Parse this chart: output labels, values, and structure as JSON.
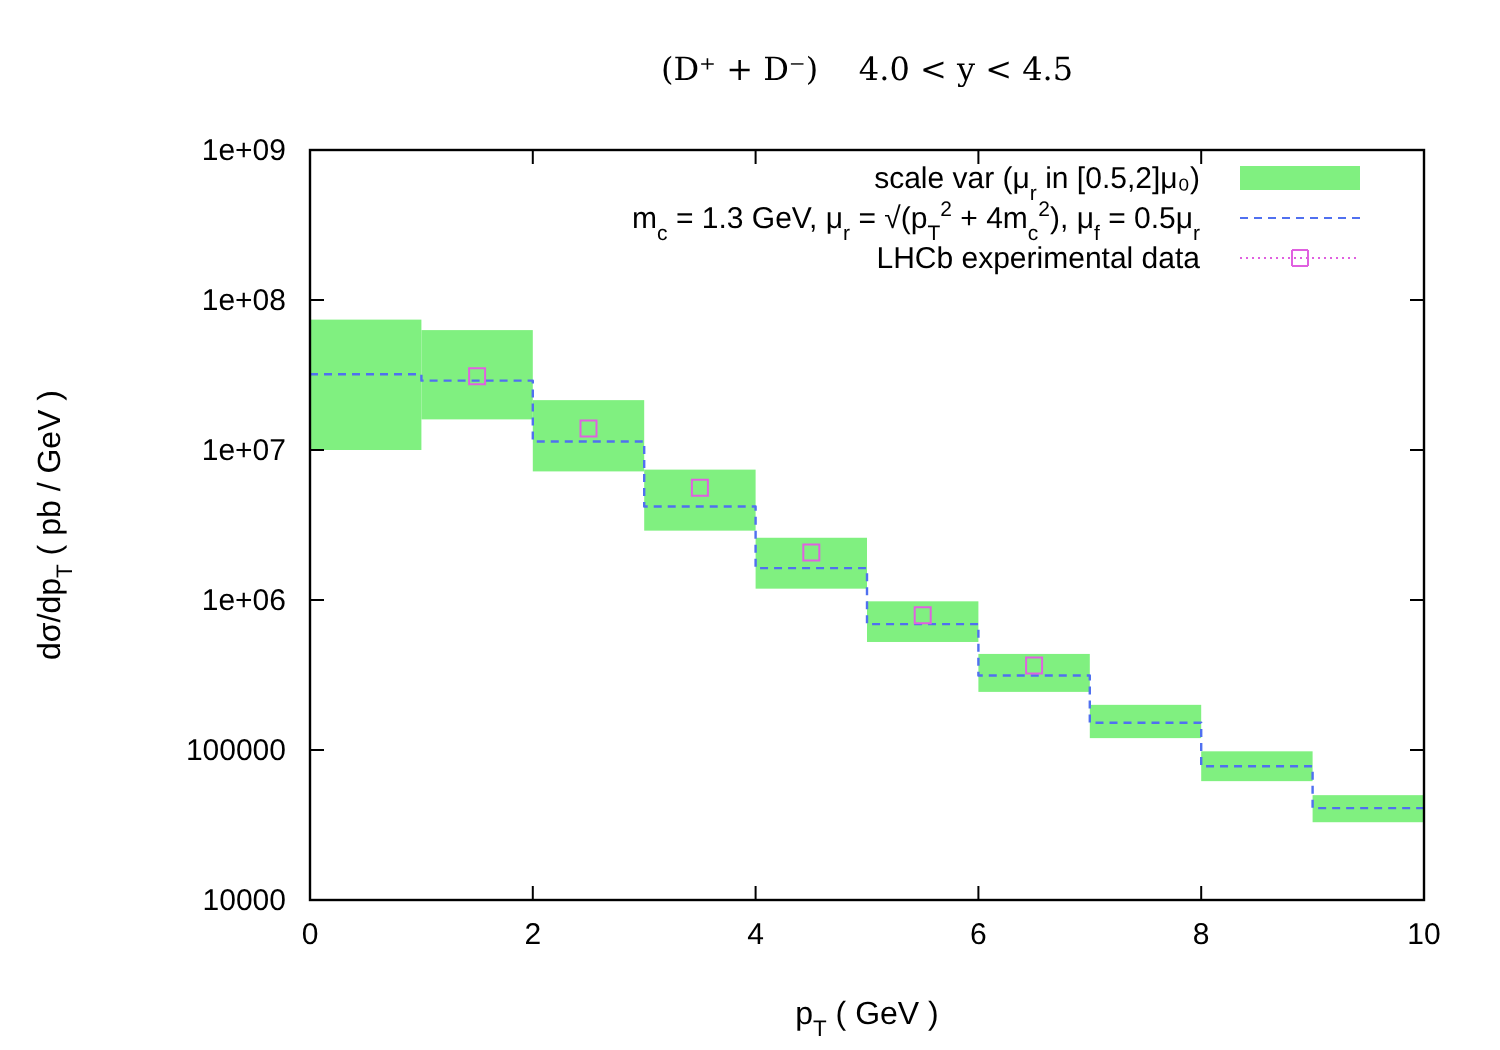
{
  "chart_data": {
    "type": "bar",
    "title": "(D⁺ + D⁻)    4.0 < y < 4.5",
    "xlabel": "p$_{T}$ ( GeV )",
    "ylabel": "dσ/dp$_{T}$ ( pb / GeV )",
    "xlim": [
      0,
      10
    ],
    "xticks": [
      0,
      2,
      4,
      6,
      8,
      10
    ],
    "ylim": [
      10000,
      1000000000
    ],
    "yticks": [
      10000,
      100000,
      {
        "value": 1000000,
        "label": "1e+06"
      },
      {
        "value": 10000000,
        "label": "1e+07"
      },
      {
        "value": 100000000,
        "label": "1e+08"
      },
      {
        "value": 1000000000,
        "label": "1e+09"
      }
    ],
    "log": true,
    "grid": false,
    "legend": "top right",
    "series": [
      {
        "name": "scale var (μ$_{r}$ in [0.5,2]μ₀)",
        "color": "#80f080",
        "x": [
          0.5,
          1.5,
          2.5,
          3.5,
          4.5,
          5.5,
          6.5,
          7.5,
          8.5,
          9.5
        ],
        "base": [
          10000000,
          16000000,
          7200000,
          2900000,
          1190000,
          525000,
          244000,
          120000,
          62000,
          33000
        ],
        "values": [
          64000000,
          47000000,
          14300000,
          4500000,
          1410000,
          455000,
          193000,
          80000,
          36000,
          17000
        ]
      },
      {
        "type": "step",
        "name": "m$_{c}$ = 1.3 GeV, μ$_{r}$ = √(p$_{T}$$^{2}$ + 4m$_{c}$$^{2}$), μ$_{f}$ = 0.5μ$_{r}$",
        "color": "#5070f0",
        "line_style": "dashed",
        "x": [
          0,
          1,
          2,
          3,
          4,
          5,
          6,
          7,
          8,
          9,
          10
        ],
        "values": [
          32000000,
          29000000,
          11400000,
          4200000,
          1630000,
          690000,
          314000,
          152000,
          78000,
          41000,
          41000
        ]
      },
      {
        "type": "scatter",
        "name": "LHCb experimental data",
        "color": "#e060e0",
        "marker": "square",
        "x": [
          1.5,
          2.5,
          3.5,
          4.5,
          5.5,
          6.5
        ],
        "values": [
          31000000,
          13900000,
          5600000,
          2070000,
          790000,
          366000
        ]
      }
    ]
  }
}
